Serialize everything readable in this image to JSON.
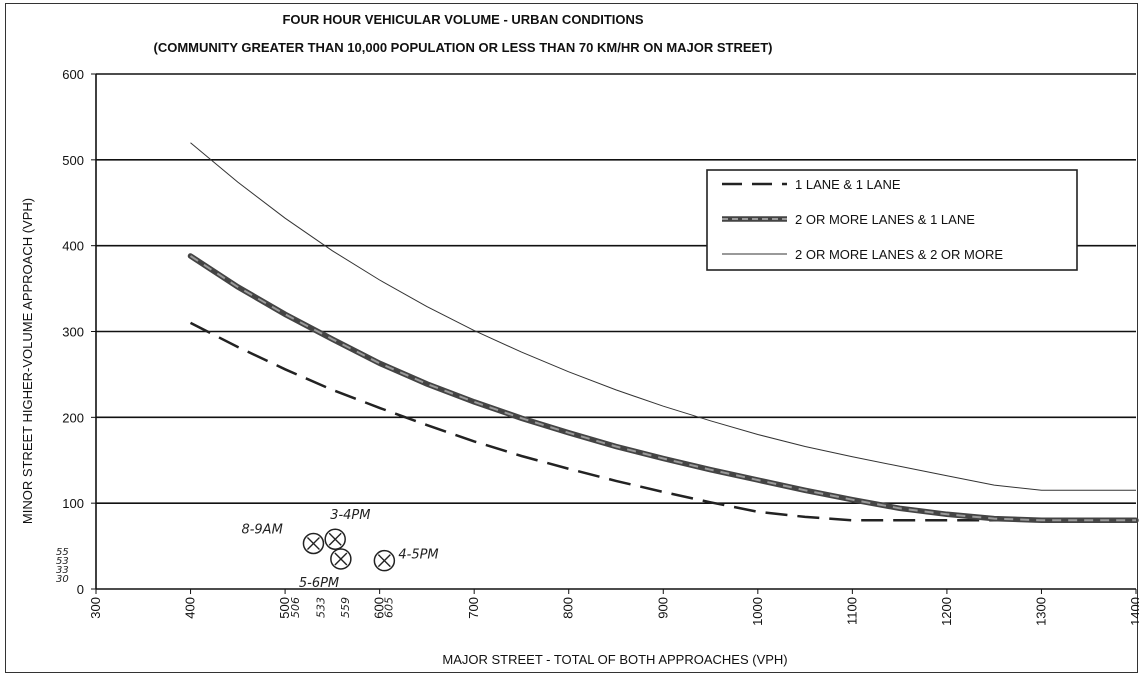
{
  "chart_data": {
    "type": "line",
    "title": "FOUR HOUR VEHICULAR VOLUME - URBAN CONDITIONS",
    "subtitle": "(COMMUNITY GREATER THAN 10,000 POPULATION OR LESS THAN 70 KM/HR ON MAJOR STREET)",
    "xlabel": "MAJOR STREET - TOTAL OF BOTH APPROACHES (VPH)",
    "ylabel": "MINOR STREET HIGHER-VOLUME APPROACH (VPH)",
    "xlim": [
      300,
      1400
    ],
    "ylim": [
      0,
      600
    ],
    "x_ticks": [
      "300",
      "400",
      "500",
      "600",
      "700",
      "800",
      "900",
      "1000",
      "1100",
      "1200",
      "1300",
      "1400"
    ],
    "y_ticks": [
      "0",
      "100",
      "200",
      "300",
      "400",
      "500",
      "600"
    ],
    "grid": "horizontal",
    "legend_position": "top-right",
    "series": [
      {
        "name": "1 LANE & 1 LANE",
        "style": "dashed",
        "color": "#222222",
        "x": [
          400,
          450,
          500,
          550,
          600,
          650,
          700,
          750,
          800,
          850,
          900,
          950,
          1000,
          1050,
          1100,
          1150,
          1200,
          1250,
          1300,
          1350,
          1400
        ],
        "y": [
          310,
          282,
          256,
          232,
          211,
          191,
          172,
          155,
          140,
          126,
          113,
          101,
          90,
          84,
          80,
          80,
          80,
          80,
          80,
          80,
          80
        ]
      },
      {
        "name": "2 OR MORE LANES & 1 LANE",
        "style": "thick",
        "color": "#555555",
        "x": [
          400,
          450,
          500,
          550,
          600,
          650,
          700,
          750,
          800,
          850,
          900,
          950,
          1000,
          1050,
          1100,
          1150,
          1200,
          1250,
          1300,
          1350,
          1400
        ],
        "y": [
          388,
          352,
          320,
          291,
          263,
          239,
          218,
          199,
          182,
          166,
          152,
          139,
          127,
          115,
          104,
          94,
          87,
          82,
          80,
          80,
          80
        ]
      },
      {
        "name": "2 OR MORE LANES & 2 OR MORE",
        "style": "thin",
        "color": "#333333",
        "x": [
          400,
          450,
          500,
          550,
          600,
          650,
          700,
          750,
          800,
          850,
          900,
          950,
          1000,
          1050,
          1100,
          1150,
          1200,
          1250,
          1300,
          1350,
          1400
        ],
        "y": [
          520,
          474,
          432,
          394,
          360,
          329,
          301,
          276,
          253,
          232,
          213,
          196,
          180,
          166,
          154,
          143,
          132,
          121,
          115,
          115,
          115
        ]
      }
    ],
    "annotations": [
      {
        "label": "8-9AM",
        "x": 530,
        "y": 53
      },
      {
        "label": "3-4PM",
        "x": 553,
        "y": 58
      },
      {
        "label": "5-6PM",
        "x": 559,
        "y": 35
      },
      {
        "label": "4-5PM",
        "x": 605,
        "y": 33
      }
    ],
    "handwritten_x_values": [
      "506",
      "533",
      "559",
      "605"
    ],
    "handwritten_y_values": [
      "55",
      "53",
      "33",
      "30"
    ]
  }
}
